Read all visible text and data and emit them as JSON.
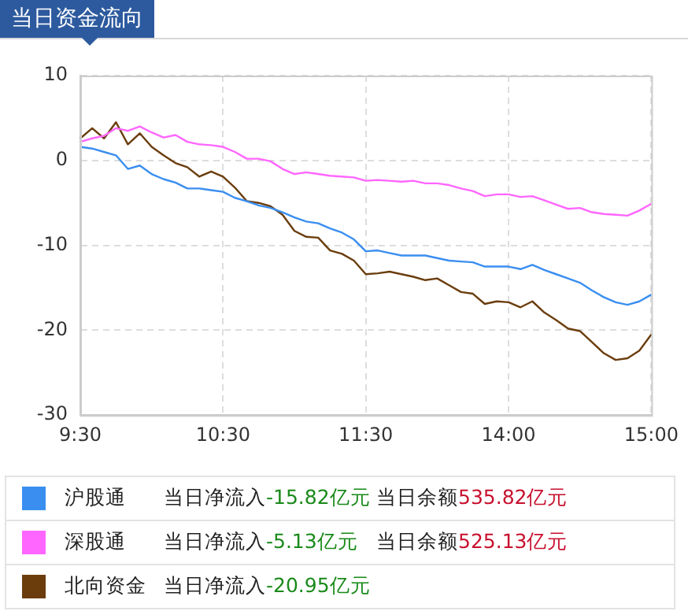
{
  "chart_data": {
    "type": "line",
    "title": "当日资金流向",
    "categories": [
      "9:30",
      null,
      null,
      null,
      null,
      null,
      null,
      null,
      null,
      null,
      null,
      null,
      "10:30",
      null,
      null,
      null,
      null,
      null,
      null,
      null,
      null,
      null,
      null,
      null,
      "11:30",
      null,
      null,
      null,
      null,
      null,
      null,
      null,
      null,
      null,
      null,
      null,
      "14:00",
      null,
      null,
      null,
      null,
      null,
      null,
      null,
      null,
      null,
      null,
      null,
      "15:00"
    ],
    "series": [
      {
        "name": "沪股通",
        "color": "#3a8ef0",
        "values": [
          1.6,
          1.4,
          1.0,
          0.6,
          -1.0,
          -0.6,
          -1.6,
          -2.2,
          -2.6,
          -3.3,
          -3.3,
          -3.5,
          -3.7,
          -4.4,
          -4.8,
          -5.3,
          -5.6,
          -6.1,
          -6.7,
          -7.2,
          -7.4,
          -8.0,
          -8.5,
          -9.3,
          -10.7,
          -10.6,
          -10.9,
          -11.2,
          -11.2,
          -11.2,
          -11.5,
          -11.8,
          -11.9,
          -12.0,
          -12.5,
          -12.5,
          -12.5,
          -12.8,
          -12.3,
          -12.9,
          -13.4,
          -13.9,
          -14.4,
          -15.3,
          -16.1,
          -16.7,
          -17.0,
          -16.6,
          -15.8
        ]
      },
      {
        "name": "深股通",
        "color": "#ff66ff",
        "values": [
          2.2,
          2.6,
          2.9,
          3.8,
          3.5,
          4.0,
          3.3,
          2.7,
          3.0,
          2.2,
          1.9,
          1.8,
          1.6,
          1.0,
          0.2,
          0.2,
          -0.1,
          -1.0,
          -1.6,
          -1.4,
          -1.6,
          -1.8,
          -1.9,
          -2.0,
          -2.4,
          -2.3,
          -2.4,
          -2.5,
          -2.4,
          -2.7,
          -2.7,
          -2.9,
          -3.3,
          -3.6,
          -4.2,
          -4.0,
          -4.0,
          -4.3,
          -4.2,
          -4.7,
          -5.2,
          -5.7,
          -5.6,
          -6.1,
          -6.3,
          -6.4,
          -6.5,
          -5.9,
          -5.1
        ]
      },
      {
        "name": "北向资金",
        "color": "#6b3d0d",
        "values": [
          2.6,
          3.8,
          2.6,
          4.5,
          1.9,
          3.2,
          1.6,
          0.6,
          -0.3,
          -0.8,
          -1.9,
          -1.3,
          -1.9,
          -3.2,
          -4.8,
          -5.0,
          -5.4,
          -6.4,
          -8.3,
          -9.0,
          -9.1,
          -10.6,
          -11.0,
          -11.8,
          -13.4,
          -13.3,
          -13.1,
          -13.4,
          -13.7,
          -14.1,
          -13.9,
          -14.7,
          -15.5,
          -15.7,
          -16.9,
          -16.6,
          -16.7,
          -17.3,
          -16.6,
          -17.9,
          -18.8,
          -19.8,
          -20.1,
          -21.4,
          -22.7,
          -23.5,
          -23.3,
          -22.4,
          -20.5
        ]
      }
    ],
    "ylim": [
      -30,
      10
    ],
    "yticks": [
      10,
      0,
      -10,
      -20,
      -30
    ],
    "grid": true,
    "legend": "bottom",
    "marker": "none",
    "line_style": "solid",
    "annotations": [
      "当日净流入-15.82亿元",
      "当日余额535.82亿元",
      "当日净流入-5.13亿元",
      "当日余额525.13亿元",
      "当日净流入-20.95亿元"
    ]
  }
}
